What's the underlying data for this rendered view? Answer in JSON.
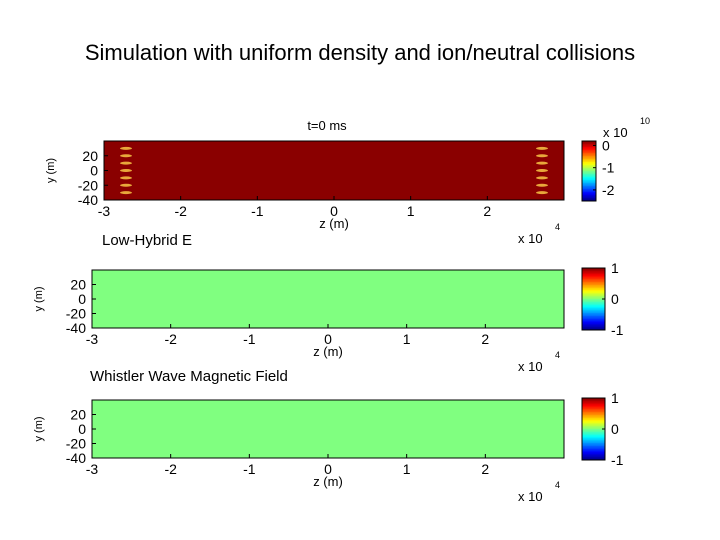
{
  "slide": {
    "title": "Simulation with uniform density and ion/neutral collisions"
  },
  "chart_data": [
    {
      "type": "heatmap",
      "title": "t=0 ms",
      "subtitle": "",
      "xlabel": "z (m)",
      "ylabel": "y (m)",
      "x_exponent_label": "x 10",
      "x_exponent": "4",
      "xlim": [
        -3,
        3
      ],
      "ylim": [
        -40,
        40
      ],
      "xticks": [
        "-3",
        "-2",
        "-1",
        "0",
        "1",
        "2"
      ],
      "yticks": [
        "20",
        "0",
        "-20",
        "-40"
      ],
      "field": "pattern",
      "stripe_y": [
        -30,
        -20,
        -10,
        0,
        10,
        20,
        30
      ],
      "colorbar": {
        "ticks": [
          "0",
          "-1",
          "-2"
        ],
        "exponent_label": "x 10",
        "exponent": "10",
        "range": [
          -2.5,
          0.2
        ]
      }
    },
    {
      "type": "heatmap",
      "title": "Low-Hybrid E",
      "xlabel": "z (m)",
      "ylabel": "y (m)",
      "x_exponent_label": "x 10",
      "x_exponent": "4",
      "xlim": [
        -3,
        3
      ],
      "ylim": [
        -40,
        40
      ],
      "xticks": [
        "-3",
        "-2",
        "-1",
        "0",
        "1",
        "2"
      ],
      "yticks": [
        "20",
        "0",
        "-20",
        "-40"
      ],
      "field": "uniform",
      "value": 0,
      "colorbar": {
        "ticks": [
          "1",
          "0",
          "-1"
        ],
        "range": [
          -1,
          1
        ]
      }
    },
    {
      "type": "heatmap",
      "title": "Whistler Wave Magnetic Field",
      "xlabel": "z (m)",
      "ylabel": "y (m)",
      "x_exponent_label": "x 10",
      "x_exponent": "4",
      "xlim": [
        -3,
        3
      ],
      "ylim": [
        -40,
        40
      ],
      "xticks": [
        "-3",
        "-2",
        "-1",
        "0",
        "1",
        "2"
      ],
      "yticks": [
        "20",
        "0",
        "-20",
        "-40"
      ],
      "field": "uniform",
      "value": 0,
      "colorbar": {
        "ticks": [
          "1",
          "0",
          "-1"
        ],
        "range": [
          -1,
          1
        ]
      }
    }
  ]
}
